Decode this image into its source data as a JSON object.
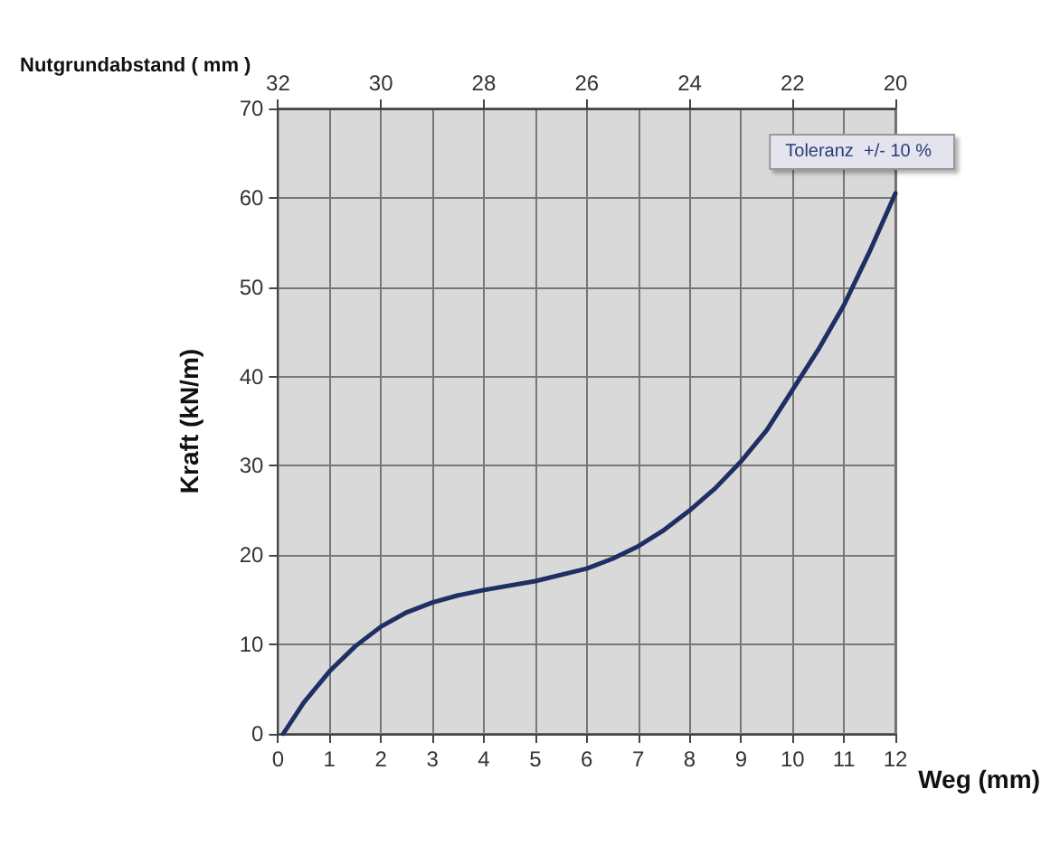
{
  "chart_data": {
    "type": "line",
    "xlabel": "Weg (mm)",
    "ylabel": "Kraft (kN/m)",
    "x2label": "Nutgrundabstand ( mm )",
    "annotations": [
      "Toleranz  +/- 10 %"
    ],
    "x": [
      0.1,
      0.5,
      1,
      1.5,
      2,
      2.5,
      3,
      3.5,
      4,
      5,
      6,
      6.5,
      7,
      7.5,
      8,
      8.5,
      9,
      9.5,
      10,
      10.5,
      11,
      11.5,
      12
    ],
    "series": [
      {
        "color": "#1f2f63",
        "values": [
          0,
          3.5,
          7,
          9.8,
          12,
          13.6,
          14.7,
          15.5,
          16.1,
          17.1,
          18.5,
          19.6,
          21,
          22.8,
          25,
          27.5,
          30.5,
          34,
          38.5,
          43,
          48,
          54,
          60.5
        ]
      }
    ],
    "xlim": [
      0,
      12
    ],
    "xticks": [
      0,
      1,
      2,
      3,
      4,
      5,
      6,
      7,
      8,
      9,
      10,
      11,
      12
    ],
    "x2lim": [
      32,
      20
    ],
    "x2ticks": [
      32,
      30,
      28,
      26,
      24,
      22,
      20
    ],
    "ylim": [
      0,
      70
    ],
    "yticks": [
      0,
      10,
      20,
      30,
      40,
      50,
      60,
      70
    ],
    "grid": true,
    "marker": "none",
    "line_style": "solid"
  }
}
